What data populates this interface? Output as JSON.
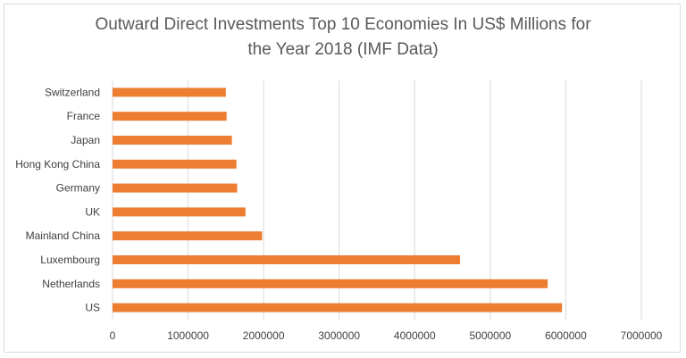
{
  "chart_data": {
    "type": "bar",
    "orientation": "horizontal",
    "title_lines": [
      "Outward Direct Investments Top 10 Economies In US$ Millions for",
      "the Year 2018 (IMF Data)"
    ],
    "categories": [
      "Switzerland",
      "France",
      "Japan",
      "Hong Kong China",
      "Germany",
      "UK",
      "Mainland China",
      "Luxembourg",
      "Netherlands",
      "US"
    ],
    "values": [
      1500000,
      1510000,
      1580000,
      1640000,
      1650000,
      1760000,
      1980000,
      4600000,
      5760000,
      5950000
    ],
    "xlim": [
      0,
      7000000
    ],
    "xticks": [
      "0",
      "1000000",
      "2000000",
      "3000000",
      "4000000",
      "5000000",
      "6000000",
      "7000000"
    ],
    "grid": "vertical",
    "bar_color": "#ed7d31",
    "grid_color": "#d9d9d9"
  }
}
